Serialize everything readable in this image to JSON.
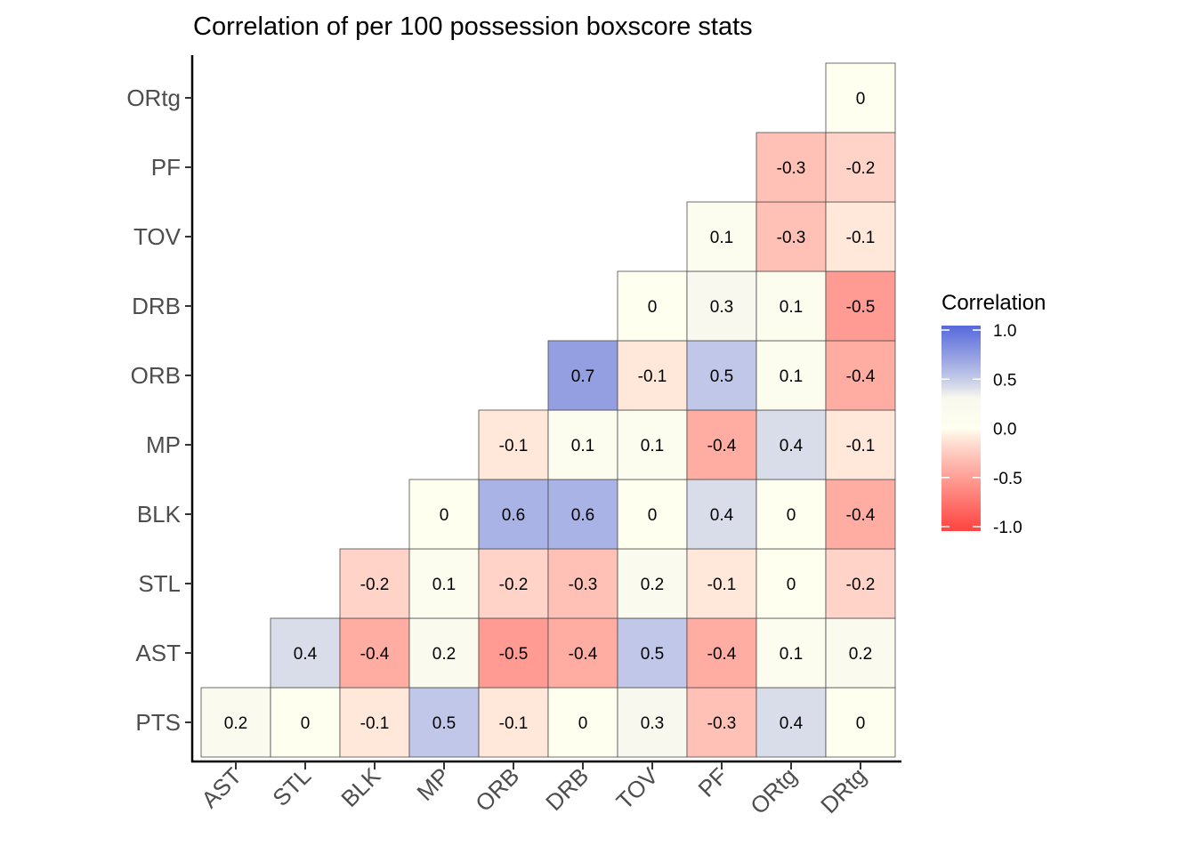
{
  "chart_data": {
    "type": "heatmap",
    "title": "Correlation of per 100 possession boxscore stats",
    "xlabel": "",
    "ylabel": "",
    "x_categories": [
      "AST",
      "STL",
      "BLK",
      "MP",
      "ORB",
      "DRB",
      "TOV",
      "PF",
      "ORtg",
      "DRtg"
    ],
    "y_categories": [
      "PTS",
      "AST",
      "STL",
      "BLK",
      "MP",
      "ORB",
      "DRB",
      "TOV",
      "PF",
      "ORtg"
    ],
    "rows": [
      {
        "y": "PTS",
        "values": [
          "0.2",
          "0",
          "-0.1",
          "0.5",
          "-0.1",
          "0",
          "0.3",
          "-0.3",
          "0.4",
          "0"
        ]
      },
      {
        "y": "AST",
        "values": [
          null,
          "0.4",
          "-0.4",
          "0.2",
          "-0.5",
          "-0.4",
          "0.5",
          "-0.4",
          "0.1",
          "0.2"
        ]
      },
      {
        "y": "STL",
        "values": [
          null,
          null,
          "-0.2",
          "0.1",
          "-0.2",
          "-0.3",
          "0.2",
          "-0.1",
          "0",
          "-0.2"
        ]
      },
      {
        "y": "BLK",
        "values": [
          null,
          null,
          null,
          "0",
          "0.6",
          "0.6",
          "0",
          "0.4",
          "0",
          "-0.4"
        ]
      },
      {
        "y": "MP",
        "values": [
          null,
          null,
          null,
          null,
          "-0.1",
          "0.1",
          "0.1",
          "-0.4",
          "0.4",
          "-0.1"
        ]
      },
      {
        "y": "ORB",
        "values": [
          null,
          null,
          null,
          null,
          null,
          "0.7",
          "-0.1",
          "0.5",
          "0.1",
          "-0.4"
        ]
      },
      {
        "y": "DRB",
        "values": [
          null,
          null,
          null,
          null,
          null,
          null,
          "0",
          "0.3",
          "0.1",
          "-0.5"
        ]
      },
      {
        "y": "TOV",
        "values": [
          null,
          null,
          null,
          null,
          null,
          null,
          null,
          "0.1",
          "-0.3",
          "-0.1"
        ]
      },
      {
        "y": "PF",
        "values": [
          null,
          null,
          null,
          null,
          null,
          null,
          null,
          null,
          "-0.3",
          "-0.2"
        ]
      },
      {
        "y": "ORtg",
        "values": [
          null,
          null,
          null,
          null,
          null,
          null,
          null,
          null,
          null,
          "0"
        ]
      }
    ],
    "legend": {
      "title": "Correlation",
      "position": "right",
      "breaks": [
        "1.0",
        "0.5",
        "0.0",
        "-0.5",
        "-1.0"
      ],
      "limits": [
        -1,
        1
      ],
      "colors": {
        "high": "#3a50d8",
        "mid": "#fffff0",
        "low": "#ff1010",
        "neutral": "#ebebeb"
      }
    },
    "grid": false
  }
}
